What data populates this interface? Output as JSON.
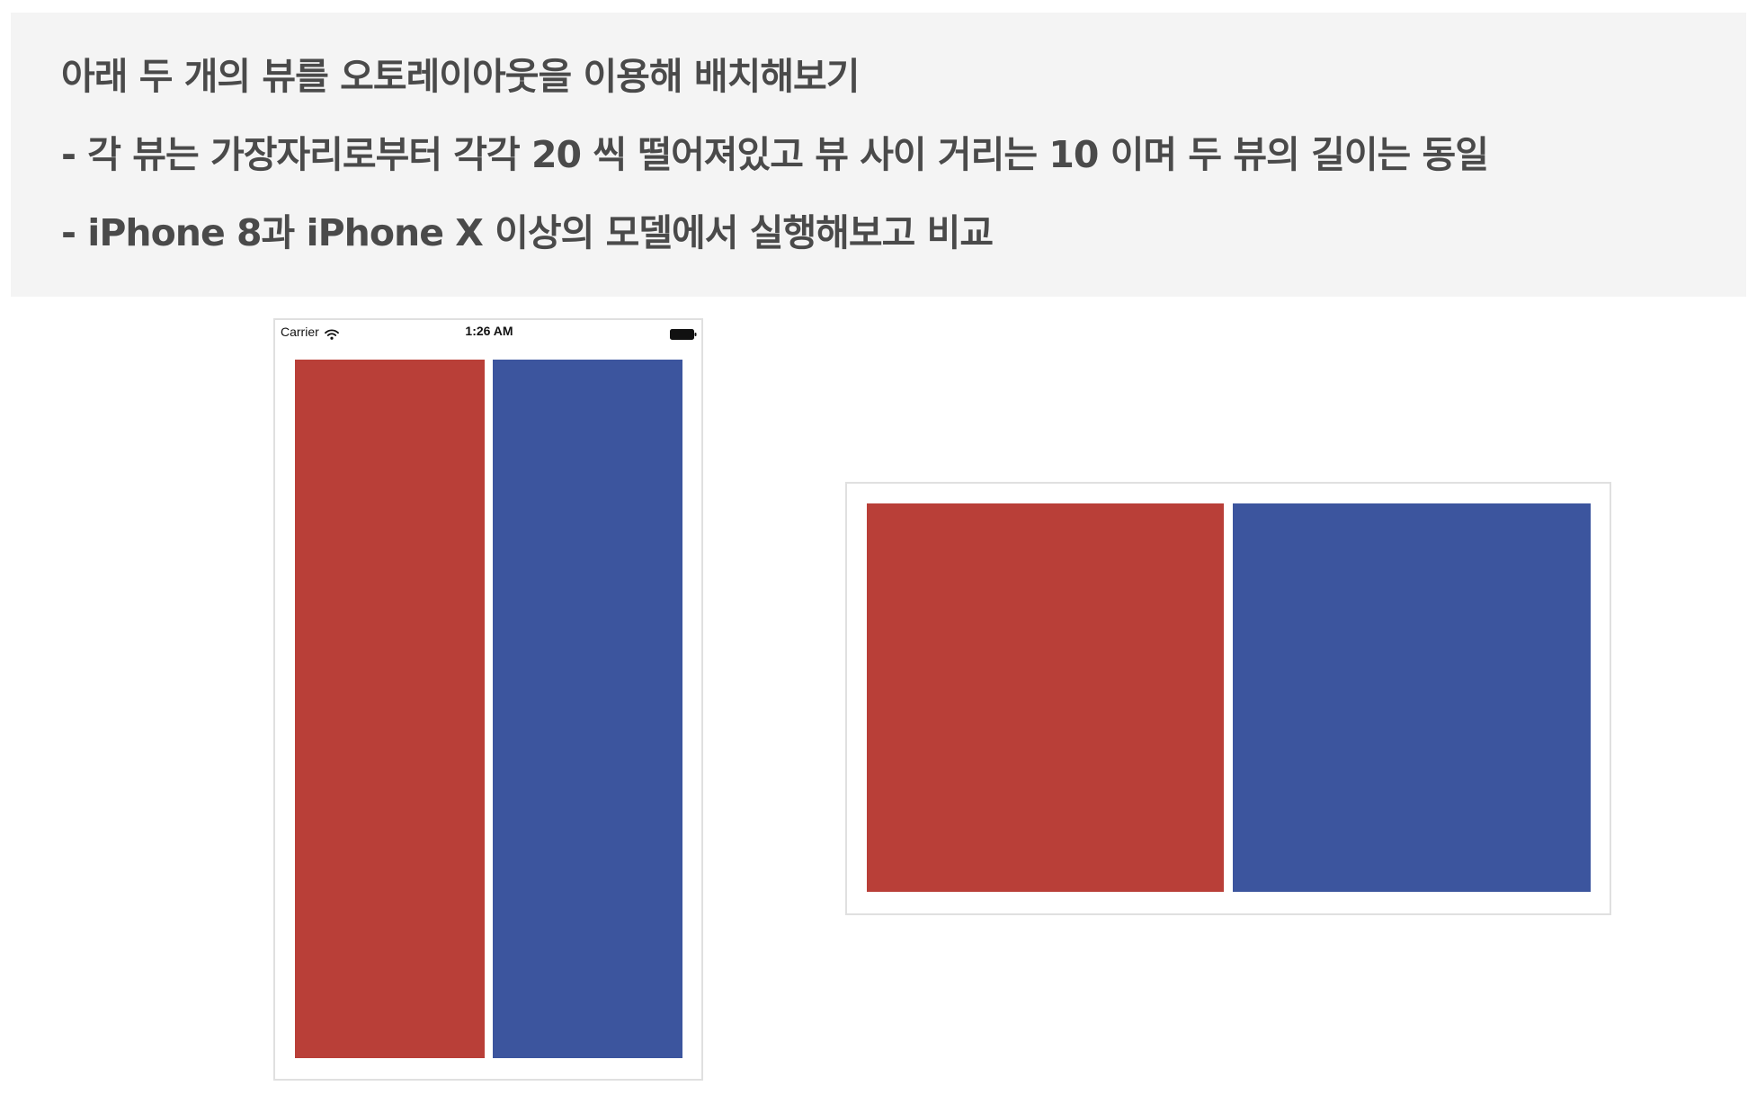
{
  "task": {
    "lines": [
      "아래 두 개의 뷰를 오토레이아웃을 이용해 배치해보기",
      "- 각 뷰는 가장자리로부터 각각 20 씩 떨어져있고 뷰 사이 거리는 10 이며 두 뷰의 길이는 동일",
      "- iPhone 8과  iPhone X 이상의 모델에서 실행해보고 비교"
    ]
  },
  "portrait_simulator": {
    "status_bar": {
      "carrier": "Carrier",
      "time": "1:26 AM",
      "wifi_icon": "wifi-icon",
      "battery_icon": "battery-icon"
    }
  },
  "colors": {
    "panel_background": "#f4f4f4",
    "text": "#4a4a4a",
    "red_view": "#b93f38",
    "blue_view": "#3c559e",
    "frame_border": "#e0e0e0"
  }
}
